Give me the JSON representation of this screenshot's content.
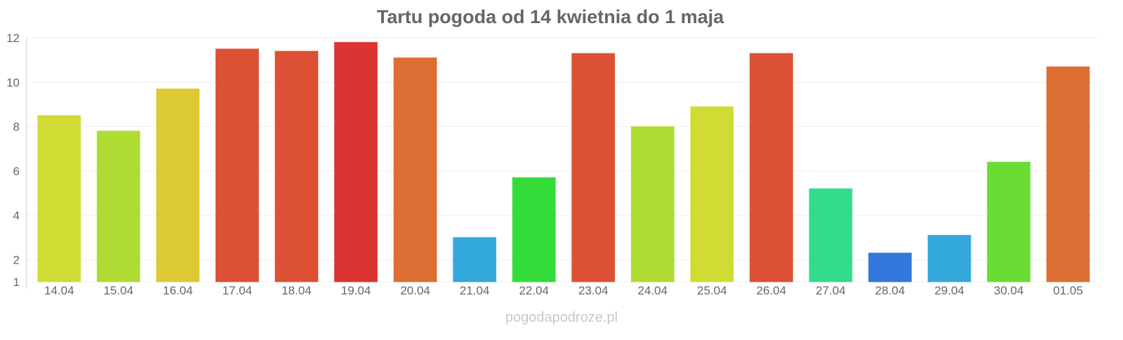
{
  "chart_data": {
    "type": "bar",
    "title": "Tartu pogoda od 14 kwietnia do 1 maja",
    "categories": [
      "14.04",
      "15.04",
      "16.04",
      "17.04",
      "18.04",
      "19.04",
      "20.04",
      "21.04",
      "22.04",
      "23.04",
      "24.04",
      "25.04",
      "26.04",
      "27.04",
      "28.04",
      "29.04",
      "30.04",
      "01.05"
    ],
    "values": [
      8.5,
      7.8,
      9.7,
      11.5,
      11.4,
      11.8,
      11.1,
      3.0,
      5.7,
      11.3,
      8.0,
      8.9,
      11.3,
      5.2,
      2.3,
      3.1,
      6.4,
      10.7
    ],
    "colors": [
      "#d0dc33",
      "#aedc33",
      "#dcc933",
      "#dc5033",
      "#dc5033",
      "#dc3333",
      "#dc6e33",
      "#33a8dc",
      "#33dc39",
      "#dc5033",
      "#aedc33",
      "#d0dc33",
      "#dc5033",
      "#33dc8a",
      "#3377dc",
      "#33a8dc",
      "#6adc33",
      "#dc6e33"
    ],
    "ylim": [
      1,
      12
    ],
    "yticks": [
      1,
      2,
      4,
      6,
      8,
      10,
      12
    ],
    "xlabel": "",
    "ylabel": "",
    "grid": true,
    "legend": "none"
  },
  "footer": {
    "watermark": "pogodapodroze.pl"
  }
}
